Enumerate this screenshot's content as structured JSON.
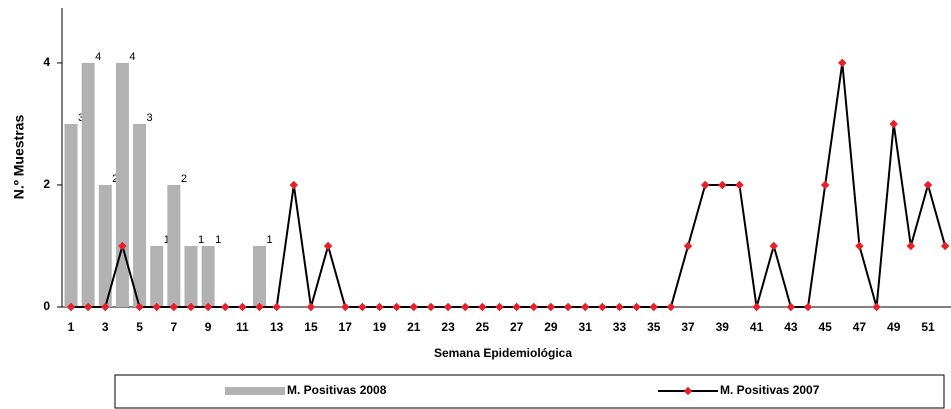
{
  "chart_data": {
    "type": "bar_line",
    "y_label": "N.º Muestras",
    "x_label": "Semana Epidemiológica",
    "categories": [
      "1",
      null,
      "3",
      null,
      "5",
      null,
      "7",
      null,
      "9",
      null,
      "11",
      null,
      "13",
      null,
      "15",
      null,
      "17",
      null,
      "19",
      null,
      "21",
      null,
      "23",
      null,
      "25",
      null,
      "27",
      null,
      "29",
      null,
      "31",
      null,
      "33",
      null,
      "35",
      null,
      "37",
      null,
      "39",
      null,
      "41",
      null,
      "43",
      null,
      "45",
      null,
      "47",
      null,
      "49",
      null,
      "51",
      null
    ],
    "series": [
      {
        "name": "M. Positivas 2008",
        "type": "bar",
        "color": "#b2b2b2",
        "values": [
          3,
          4,
          2,
          4,
          3,
          1,
          2,
          1,
          1,
          null,
          null,
          1,
          null,
          null,
          null,
          null,
          null,
          null,
          null,
          null,
          null,
          null,
          null,
          null,
          null,
          null,
          null,
          null,
          null,
          null,
          null,
          null,
          null,
          null,
          null,
          null,
          null,
          null,
          null,
          null,
          null,
          null,
          null,
          null,
          null,
          null,
          null,
          null,
          null,
          null,
          null,
          null
        ]
      },
      {
        "name": "M. Positivas 2007",
        "type": "line",
        "color": "#000000",
        "marker_color": "#e8202a",
        "values": [
          0,
          0,
          0,
          1,
          0,
          0,
          0,
          0,
          0,
          0,
          0,
          0,
          0,
          2,
          0,
          1,
          0,
          0,
          0,
          0,
          0,
          0,
          0,
          0,
          0,
          0,
          0,
          0,
          0,
          0,
          0,
          0,
          0,
          0,
          0,
          0,
          1,
          2,
          2,
          2,
          0,
          1,
          0,
          0,
          2,
          4,
          1,
          0,
          3,
          1,
          2,
          1
        ]
      }
    ],
    "ylim": [
      0,
      4.9
    ],
    "yticks": [
      0,
      2,
      4
    ],
    "legend": "bottom"
  }
}
